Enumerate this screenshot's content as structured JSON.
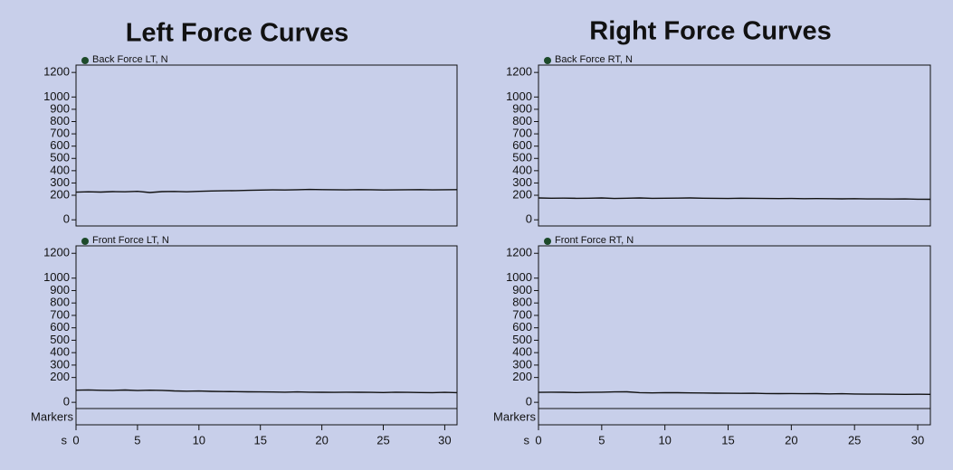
{
  "headings": [
    "Left Force Curves",
    "Right Force Curves"
  ],
  "chart_data": [
    {
      "type": "line",
      "series": [
        {
          "name": "Back Force LT, N",
          "color": "#111111",
          "values": [
            225,
            228,
            226,
            230,
            228,
            232,
            222,
            230,
            231,
            228,
            232,
            235,
            236,
            238,
            240,
            242,
            244,
            243,
            245,
            247,
            246,
            245,
            244,
            246,
            245,
            243,
            244,
            245,
            246,
            244,
            245,
            246
          ]
        }
      ],
      "x": [
        0,
        1,
        2,
        3,
        4,
        5,
        6,
        7,
        8,
        9,
        10,
        11,
        12,
        13,
        14,
        15,
        16,
        17,
        18,
        19,
        20,
        21,
        22,
        23,
        24,
        25,
        26,
        27,
        28,
        29,
        30,
        31
      ],
      "xlim": [
        0,
        31
      ],
      "ylim": [
        -50,
        1260
      ],
      "yticks": [
        0,
        200,
        300,
        400,
        500,
        600,
        700,
        800,
        900,
        1000,
        1200
      ],
      "legend_color": "#1d4a2a"
    },
    {
      "type": "line",
      "series": [
        {
          "name": "Front Force LT, N",
          "color": "#111111",
          "values": [
            98,
            100,
            97,
            96,
            99,
            95,
            98,
            96,
            92,
            90,
            91,
            88,
            87,
            86,
            85,
            84,
            83,
            82,
            84,
            82,
            81,
            80,
            82,
            81,
            80,
            79,
            82,
            80,
            79,
            78,
            80,
            78
          ]
        }
      ],
      "x": [
        0,
        1,
        2,
        3,
        4,
        5,
        6,
        7,
        8,
        9,
        10,
        11,
        12,
        13,
        14,
        15,
        16,
        17,
        18,
        19,
        20,
        21,
        22,
        23,
        24,
        25,
        26,
        27,
        28,
        29,
        30,
        31
      ],
      "xlim": [
        0,
        31
      ],
      "xticks": [
        0,
        5,
        10,
        15,
        20,
        25,
        30
      ],
      "x_label": "s",
      "markers_label": "Markers",
      "ylim": [
        -50,
        1260
      ],
      "yticks": [
        0,
        200,
        300,
        400,
        500,
        600,
        700,
        800,
        900,
        1000,
        1200
      ],
      "legend_color": "#1d4a2a"
    },
    {
      "type": "line",
      "series": [
        {
          "name": "Back Force RT, N",
          "color": "#111111",
          "values": [
            178,
            176,
            177,
            175,
            176,
            178,
            174,
            176,
            178,
            175,
            176,
            177,
            178,
            176,
            175,
            174,
            176,
            175,
            174,
            173,
            174,
            172,
            173,
            172,
            171,
            172,
            170,
            170,
            169,
            170,
            168,
            167
          ]
        }
      ],
      "x": [
        0,
        1,
        2,
        3,
        4,
        5,
        6,
        7,
        8,
        9,
        10,
        11,
        12,
        13,
        14,
        15,
        16,
        17,
        18,
        19,
        20,
        21,
        22,
        23,
        24,
        25,
        26,
        27,
        28,
        29,
        30,
        31
      ],
      "xlim": [
        0,
        31
      ],
      "ylim": [
        -50,
        1260
      ],
      "yticks": [
        0,
        200,
        300,
        400,
        500,
        600,
        700,
        800,
        900,
        1000,
        1200
      ],
      "legend_color": "#1d4a2a"
    },
    {
      "type": "line",
      "series": [
        {
          "name": "Front Force RT, N",
          "color": "#111111",
          "values": [
            80,
            82,
            81,
            79,
            80,
            82,
            84,
            85,
            78,
            76,
            78,
            77,
            76,
            75,
            74,
            73,
            72,
            73,
            71,
            70,
            71,
            69,
            70,
            68,
            69,
            67,
            66,
            66,
            65,
            64,
            65,
            64
          ]
        }
      ],
      "x": [
        0,
        1,
        2,
        3,
        4,
        5,
        6,
        7,
        8,
        9,
        10,
        11,
        12,
        13,
        14,
        15,
        16,
        17,
        18,
        19,
        20,
        21,
        22,
        23,
        24,
        25,
        26,
        27,
        28,
        29,
        30,
        31
      ],
      "xlim": [
        0,
        31
      ],
      "xticks": [
        0,
        5,
        10,
        15,
        20,
        25,
        30
      ],
      "x_label": "s",
      "markers_label": "Markers",
      "ylim": [
        -50,
        1260
      ],
      "yticks": [
        0,
        200,
        300,
        400,
        500,
        600,
        700,
        800,
        900,
        1000,
        1200
      ],
      "legend_color": "#1d4a2a"
    }
  ]
}
